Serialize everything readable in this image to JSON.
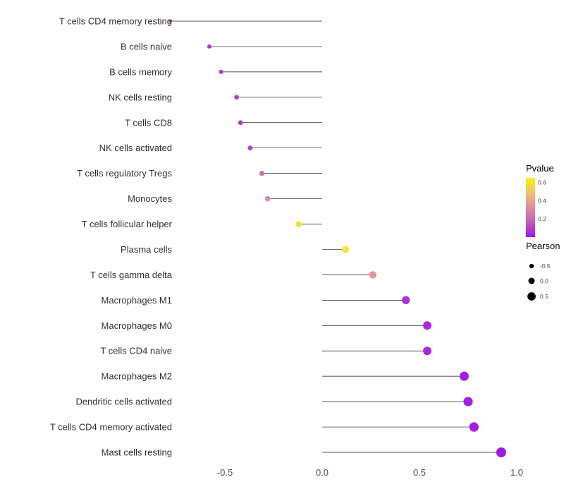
{
  "chart_data": {
    "type": "scatter",
    "subtype": "lollipop",
    "title": "",
    "xlabel": "",
    "ylabel": "",
    "xlim": [
      -0.88,
      1.07
    ],
    "x_ticks": [
      -0.5,
      0.0,
      0.5,
      1.0
    ],
    "x_tick_labels": [
      "-0.5",
      "0.0",
      "0.5",
      "1.0"
    ],
    "grid": false,
    "categories": [
      "T cells CD4 memory resting",
      "B cells naive",
      "B cells memory",
      "NK cells resting",
      "T cells CD8",
      "NK cells activated",
      "T cells regulatory  Tregs",
      "Monocytes",
      "T cells follicular helper",
      "Plasma cells",
      "T cells gamma delta",
      "Macrophages M1",
      "Macrophages M0",
      "T cells CD4 naive",
      "Macrophages M2",
      "Dendritic cells activated",
      "T cells CD4 memory activated",
      "Mast cells resting"
    ],
    "series": [
      {
        "name": "Pearson",
        "values": [
          -0.78,
          -0.58,
          -0.52,
          -0.44,
          -0.42,
          -0.37,
          -0.31,
          -0.28,
          -0.12,
          0.12,
          0.26,
          0.43,
          0.54,
          0.54,
          0.73,
          0.75,
          0.78,
          0.92
        ]
      },
      {
        "name": "Pvalue",
        "values": [
          0.08,
          0.1,
          0.12,
          0.12,
          0.12,
          0.15,
          0.3,
          0.35,
          0.6,
          0.62,
          0.38,
          0.1,
          0.06,
          0.06,
          0.02,
          0.02,
          0.02,
          0.01
        ]
      }
    ],
    "legend": {
      "position": "right",
      "pvalue": {
        "title": "Pvalue",
        "tick_labels": [
          "0.6",
          "0.4",
          "0.2"
        ],
        "tick_values": [
          0.6,
          0.4,
          0.2
        ],
        "domain": [
          0,
          0.65
        ],
        "colors_top_to_bottom": [
          "#F5F216",
          "#EEC46A",
          "#E08CA0",
          "#C25DB4",
          "#A018E8"
        ]
      },
      "pearson": {
        "title": "Pearson",
        "tick_labels": [
          "-0.5",
          "0.0",
          "0.5"
        ],
        "tick_values": [
          -0.5,
          0.0,
          0.5
        ]
      }
    },
    "colors": {
      "stem": "#1a1a1a",
      "axis_text": "#4d4d4d",
      "category_text": "#303030",
      "legend_title_text": "#000000",
      "background": "#ffffff"
    }
  }
}
